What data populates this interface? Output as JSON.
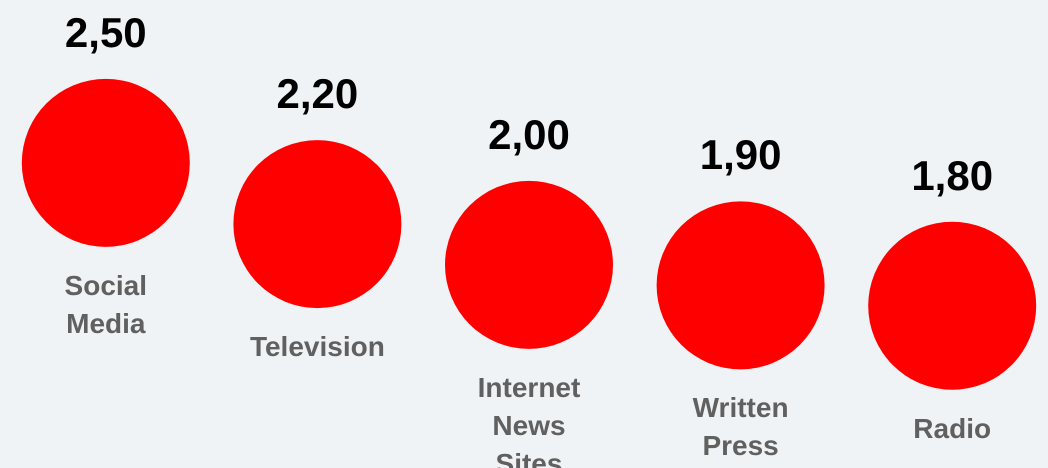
{
  "chart_data": {
    "type": "dot",
    "categories": [
      "Social Media",
      "Television",
      "Internet News Sites",
      "Written Press",
      "Radio"
    ],
    "values": [
      2.5,
      2.2,
      2.0,
      1.9,
      1.8
    ],
    "value_labels": [
      "2,50",
      "2,20",
      "2,00",
      "1,90",
      "1,80"
    ],
    "color": "#ff0000",
    "ylim": [
      1.5,
      2.7
    ]
  }
}
